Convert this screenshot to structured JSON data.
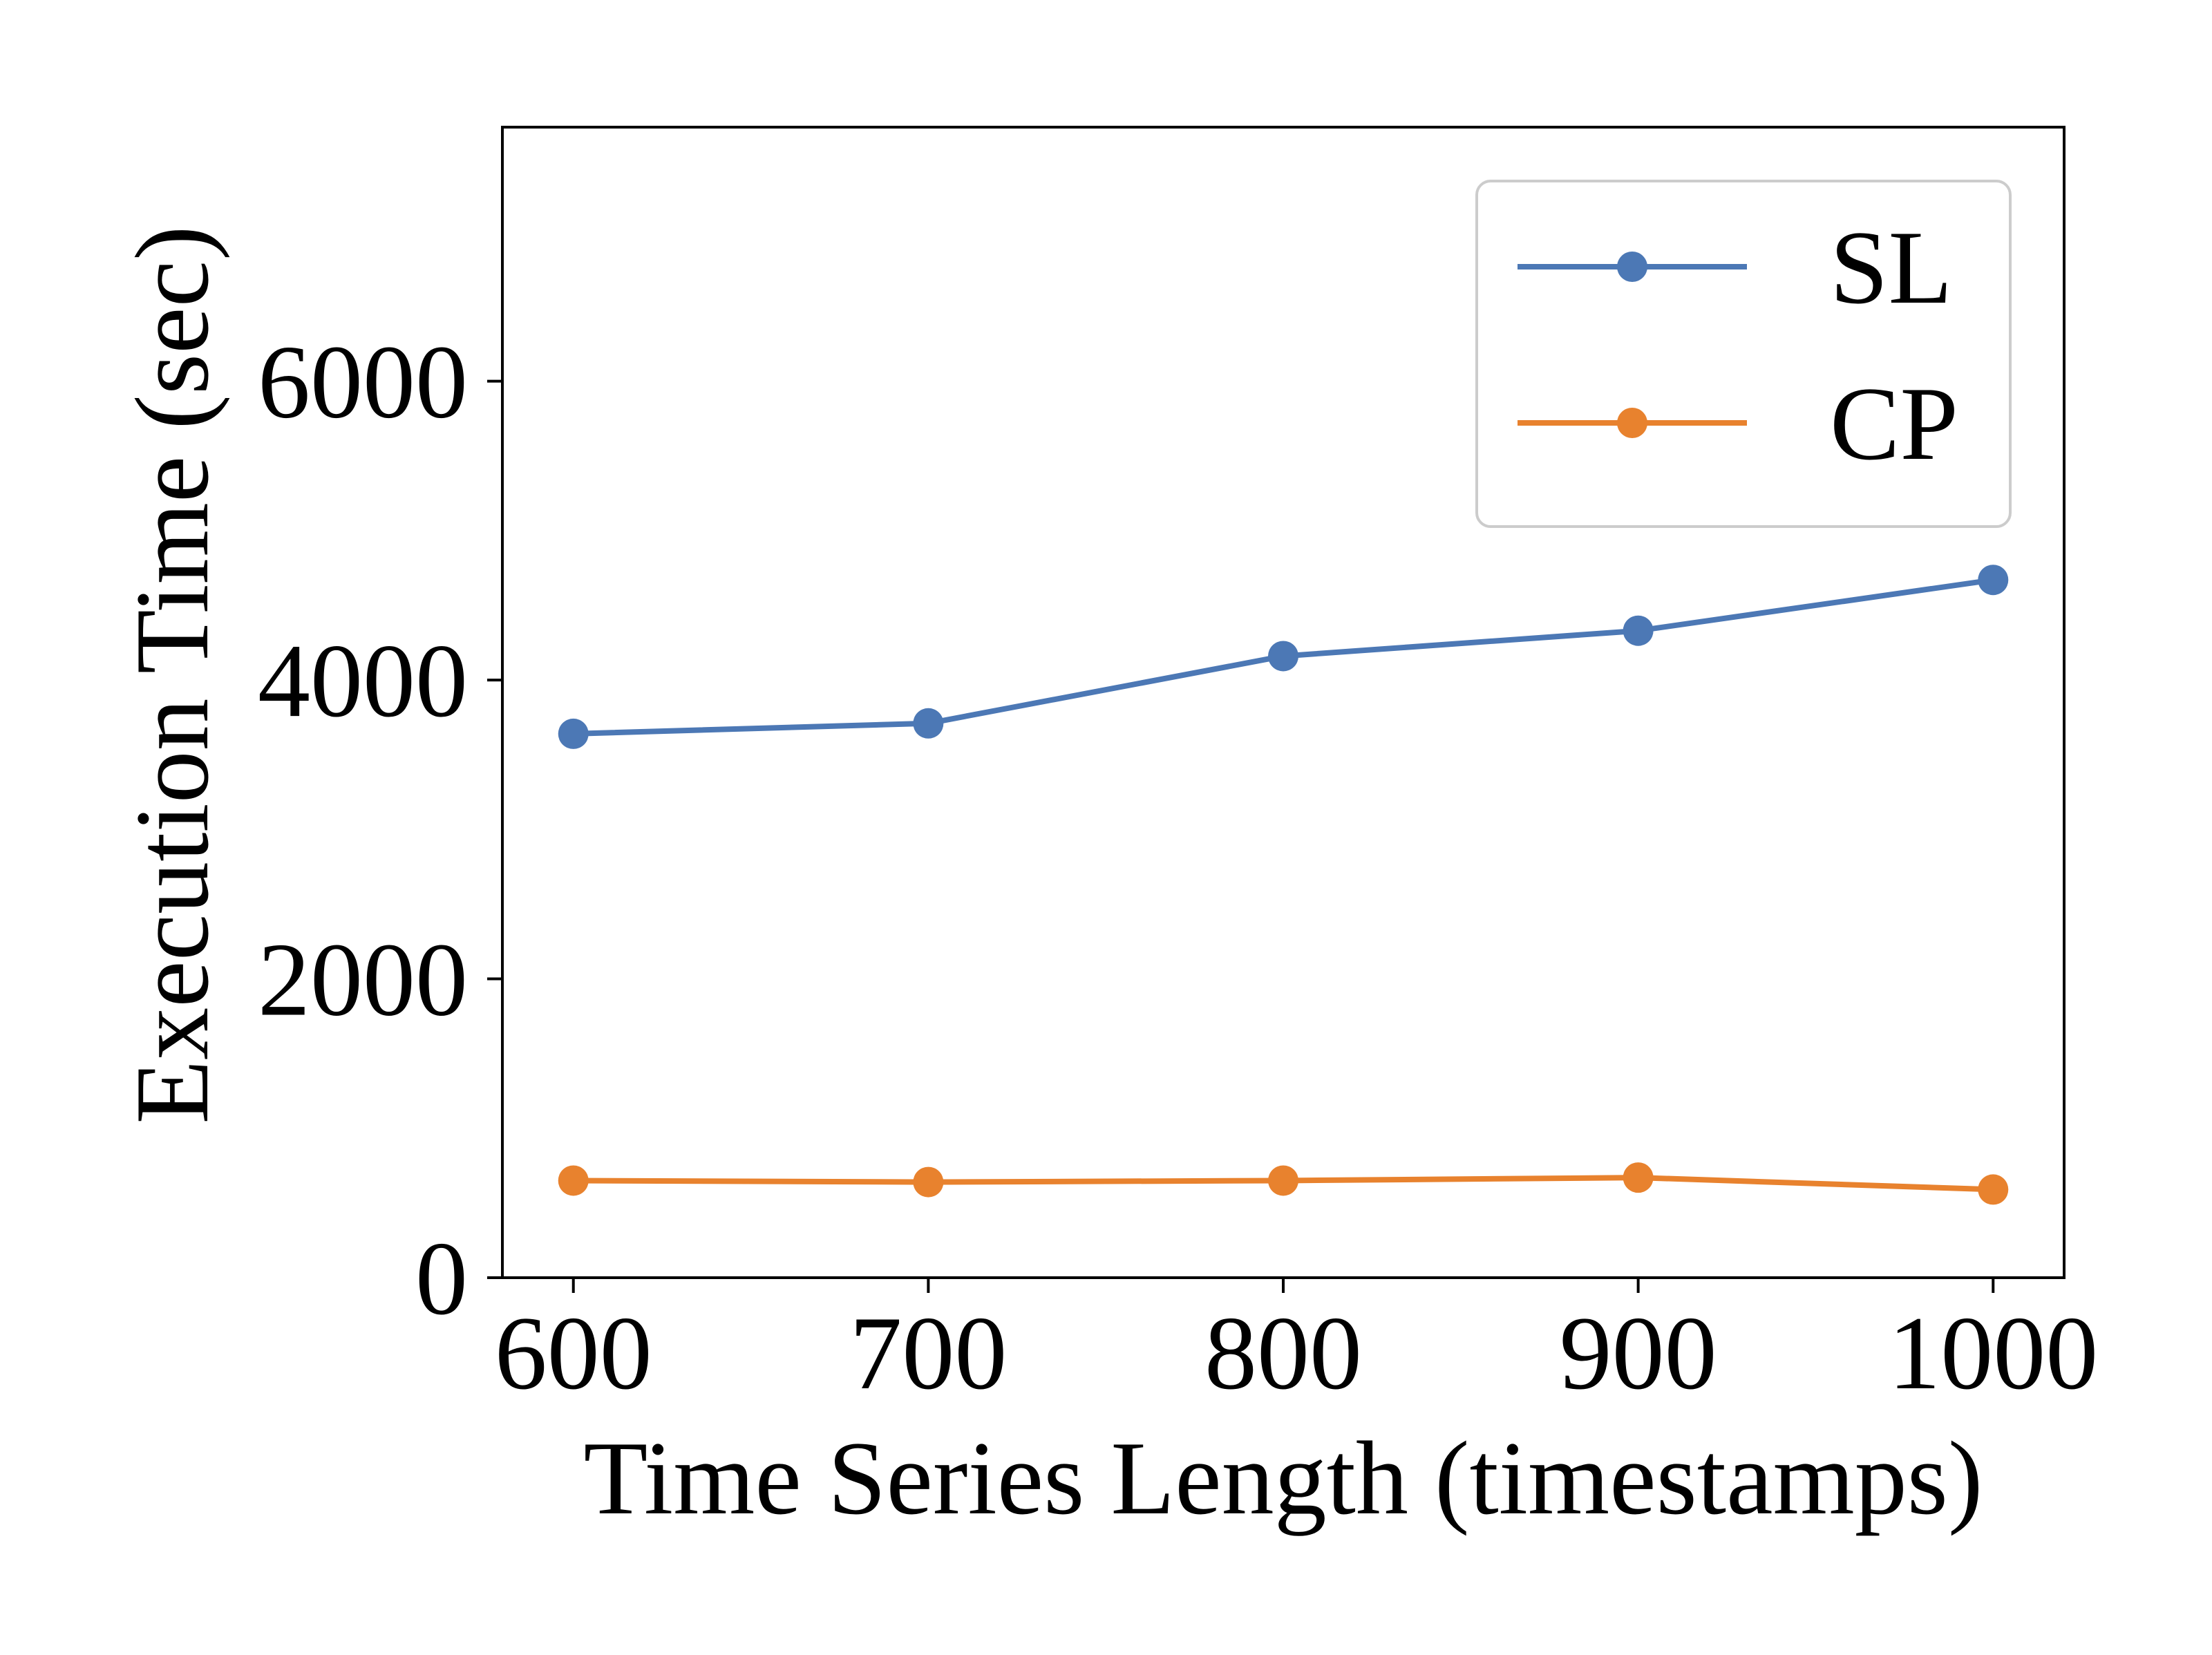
{
  "chart_data": {
    "type": "line",
    "title": "",
    "xlabel": "Time Series Length (timestamps)",
    "ylabel": "Execution Time (sec)",
    "x": [
      600,
      700,
      800,
      900,
      1000
    ],
    "xticks": [
      "600",
      "700",
      "800",
      "900",
      "1000"
    ],
    "yticks": [
      "0",
      "2000",
      "4000",
      "6000"
    ],
    "xlim": [
      580,
      1020
    ],
    "ylim": [
      0,
      7700
    ],
    "grid": false,
    "legend_position": "top-right",
    "series": [
      {
        "name": "SL",
        "color": "#4c78b5",
        "marker": "circle",
        "values": [
          3640,
          3710,
          4160,
          4330,
          4670
        ]
      },
      {
        "name": "CP",
        "color": "#e8822e",
        "marker": "circle",
        "values": [
          650,
          640,
          650,
          670,
          590
        ]
      }
    ]
  }
}
